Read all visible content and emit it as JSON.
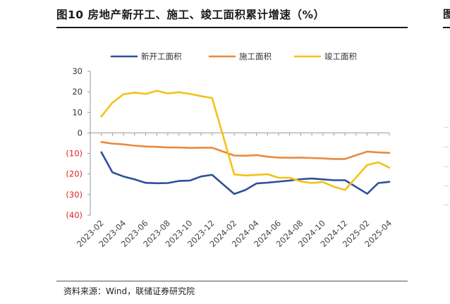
{
  "header": {
    "title": "图10 房地产新开工、施工、竣工面积累计增速（%）",
    "source": "资料来源：Wind，联储证券研究院"
  },
  "colors": {
    "new_start": "#2f4f9a",
    "construction": "#ea8a3d",
    "completion": "#f5c117",
    "negative_tick": "#e02020",
    "axis": "#999999"
  },
  "chart_data": {
    "type": "line",
    "title": "",
    "xlabel": "",
    "ylabel": "",
    "ylim": [
      -40,
      30
    ],
    "yticks": [
      30,
      20,
      10,
      0,
      -10,
      -20,
      -30,
      -40
    ],
    "ytick_labels": [
      "30",
      "20",
      "10",
      "0",
      "(10)",
      "(20)",
      "(30)",
      "(40)"
    ],
    "grid": false,
    "legend_position": "top",
    "x": [
      "2023-01",
      "2023-02",
      "2023-03",
      "2023-04",
      "2023-05",
      "2023-06",
      "2023-07",
      "2023-08",
      "2023-09",
      "2023-10",
      "2023-11",
      "2023-12",
      "2024-01",
      "2024-02",
      "2024-03",
      "2024-04",
      "2024-05",
      "2024-06",
      "2024-07",
      "2024-08",
      "2024-09",
      "2024-10",
      "2024-11",
      "2024-12",
      "2025-01",
      "2025-02",
      "2025-03",
      "2025-04"
    ],
    "x_tick_labels": [
      "2023-02",
      "2023-04",
      "2023-06",
      "2023-08",
      "2023-10",
      "2023-12",
      "2024-02",
      "2024-04",
      "2024-06",
      "2024-08",
      "2024-10",
      "2024-12",
      "2025-02",
      "2025-04"
    ],
    "series": [
      {
        "name": "新开工面积",
        "color_key": "new_start",
        "values": [
          null,
          -9.4,
          -19.2,
          -21.2,
          -22.6,
          -24.3,
          -24.5,
          -24.4,
          -23.4,
          -23.2,
          -21.2,
          -20.4,
          null,
          -29.7,
          -27.8,
          -24.6,
          -24.2,
          -23.7,
          -23.2,
          -22.5,
          -22.2,
          -22.6,
          -23.0,
          -23.0,
          null,
          -29.6,
          -24.4,
          -23.8
        ]
      },
      {
        "name": "施工面积",
        "color_key": "construction",
        "values": [
          null,
          -4.4,
          -5.2,
          -5.6,
          -6.2,
          -6.6,
          -6.8,
          -7.1,
          -7.1,
          -7.3,
          -7.2,
          -7.2,
          null,
          -11.0,
          -11.1,
          -10.8,
          -11.6,
          -12.0,
          -12.1,
          -12.0,
          -12.2,
          -12.4,
          -12.7,
          -12.7,
          null,
          -9.1,
          -9.5,
          -9.7
        ]
      },
      {
        "name": "竣工面积",
        "color_key": "completion",
        "values": [
          null,
          8.0,
          14.7,
          18.8,
          19.6,
          19.0,
          20.5,
          19.2,
          19.8,
          19.0,
          17.9,
          17.0,
          null,
          -20.2,
          -20.7,
          -20.4,
          -20.1,
          -21.8,
          -21.8,
          -23.6,
          -24.4,
          -23.9,
          -26.2,
          -27.7,
          null,
          -15.6,
          -14.3,
          -16.9
        ]
      }
    ]
  }
}
